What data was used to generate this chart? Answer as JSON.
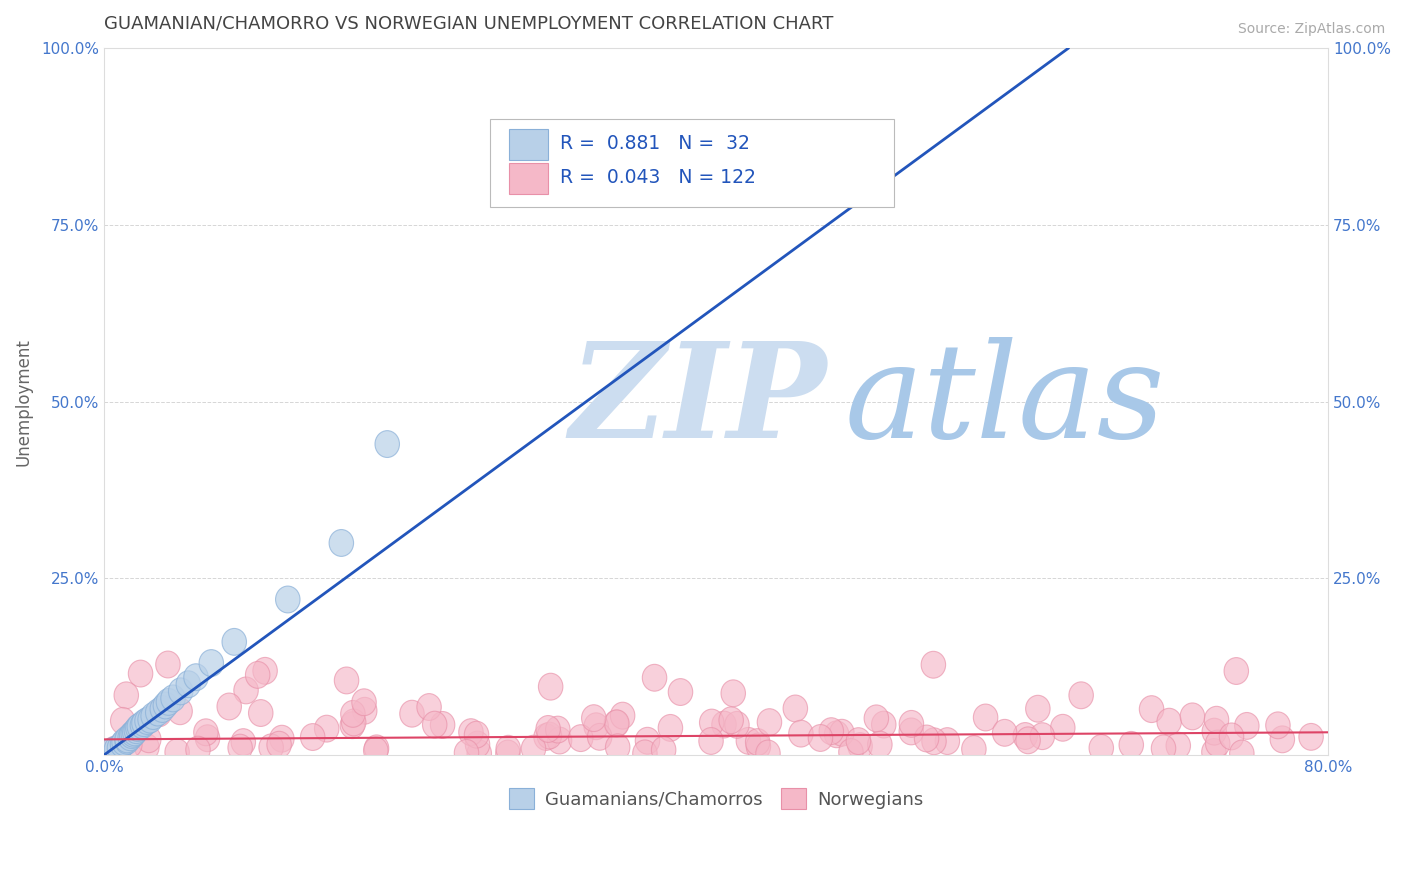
{
  "title": "GUAMANIAN/CHAMORRO VS NORWEGIAN UNEMPLOYMENT CORRELATION CHART",
  "source": "Source: ZipAtlas.com",
  "ylabel": "Unemployment",
  "xlim": [
    0.0,
    0.8
  ],
  "ylim": [
    0.0,
    1.0
  ],
  "guamanian_color": "#b8d0e8",
  "guamanian_edge": "#8ab0d8",
  "norwegian_color": "#f5b8c8",
  "norwegian_edge": "#e890a8",
  "blue_line_color": "#2255bb",
  "pink_line_color": "#dd4466",
  "R_guamanian": 0.881,
  "N_guamanian": 32,
  "R_norwegian": 0.043,
  "N_norwegian": 122,
  "watermark_zip": "ZIP",
  "watermark_atlas": "atlas",
  "legend_label_1": "Guamanians/Chamorros",
  "legend_label_2": "Norwegians",
  "background_color": "#ffffff",
  "grid_color": "#cccccc",
  "title_color": "#444444",
  "axis_label_color": "#666666",
  "tick_color": "#4477cc",
  "source_color": "#aaaaaa"
}
